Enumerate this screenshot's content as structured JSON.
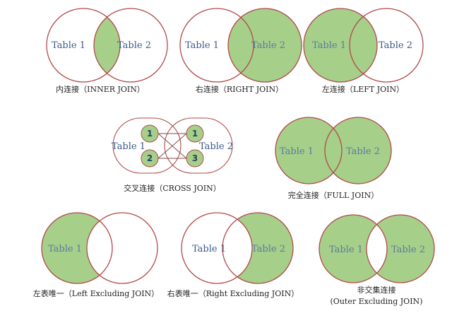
{
  "joins": {
    "inner": {
      "left": "Table 1",
      "right": "Table 2",
      "caption": "内连接（INNER JOIN）"
    },
    "right": {
      "left": "Table 1",
      "right": "Table 2",
      "caption": "右连接（RIGHT JOIN）"
    },
    "left": {
      "left": "Table 1",
      "right": "Table 2",
      "caption": "左连接（LEFT JOIN）"
    },
    "cross": {
      "left": "Table 1",
      "right": "Table 2",
      "left_nums": [
        "1",
        "2"
      ],
      "right_nums": [
        "1",
        "3"
      ],
      "caption": "交叉连接（CROSS JOIN）"
    },
    "full": {
      "left": "Table 1",
      "right": "Table 2",
      "caption": "完全连接（FULL JOIN）"
    },
    "left_excl": {
      "left": "Table 1",
      "right": "",
      "caption": "左表唯一（Left Excluding JOIN）"
    },
    "right_excl": {
      "left": "Table 1",
      "right": "Table 2",
      "caption": "右表唯一（Right Excluding JOIN）"
    },
    "outer_excl": {
      "left": "Table 1",
      "right": "Table 2",
      "caption_line1": "非交集连接",
      "caption_line2": "(Outer Excluding JOIN)"
    }
  },
  "colors": {
    "fill": "#a6cf8a",
    "stroke": "#b24a4a",
    "text": "#3a5a8a"
  }
}
